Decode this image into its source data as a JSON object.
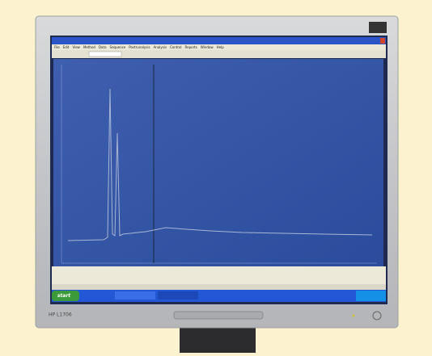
{
  "window": {
    "menu": [
      "File",
      "Edit",
      "View",
      "Method",
      "Data",
      "Sequence",
      "Postrunalysis",
      "Analysis",
      "Control",
      "Reports",
      "Window",
      "Help"
    ]
  },
  "taskbar": {
    "start": "start"
  },
  "monitor": {
    "model": "HP L1706"
  }
}
